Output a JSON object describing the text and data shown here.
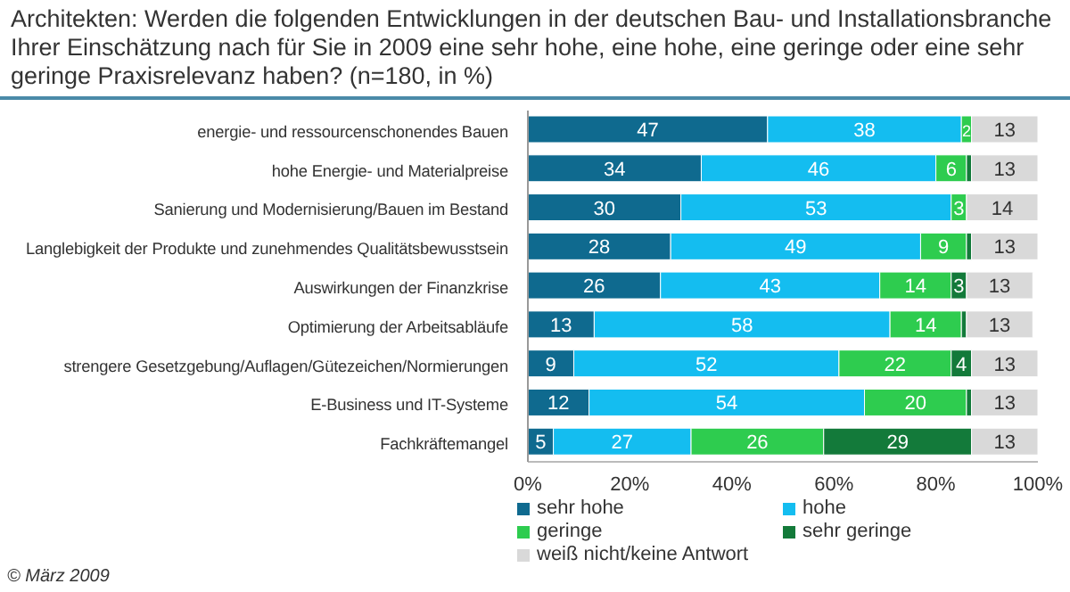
{
  "chart_data": {
    "type": "bar",
    "orientation": "horizontal",
    "stacked": true,
    "title": "Architekten: Werden die folgenden Entwicklungen in der deutschen Bau- und Installationsbranche Ihrer Einschätzung nach für Sie in 2009 eine sehr hohe, eine hohe, eine geringe oder eine sehr geringe Praxisrelevanz haben? (n=180, in %)",
    "categories": [
      "energie- und ressourcenschonendes Bauen",
      "hohe Energie- und Materialpreise",
      "Sanierung und Modernisierung/Bauen im Bestand",
      "Langlebigkeit der Produkte und zunehmendes Qualitätsbewusstsein",
      "Auswirkungen der Finanzkrise",
      "Optimierung der Arbeitsabläufe",
      "strengere Gesetzgebung/Auflagen/Gütezeichen/Normierungen",
      "E-Business und IT-Systeme",
      "Fachkräftemangel"
    ],
    "series": [
      {
        "name": "sehr hohe",
        "color": "#0f6a8f",
        "values": [
          47,
          34,
          30,
          28,
          26,
          13,
          9,
          12,
          5
        ],
        "value_labels": [
          "47",
          "34",
          "30",
          "28",
          "26",
          "13",
          "9",
          "12",
          "5"
        ]
      },
      {
        "name": "hohe",
        "color": "#14bdf0",
        "values": [
          38,
          46,
          53,
          49,
          43,
          58,
          52,
          54,
          27
        ],
        "value_labels": [
          "38",
          "46",
          "53",
          "49",
          "43",
          "58",
          "52",
          "54",
          "27"
        ]
      },
      {
        "name": "geringe",
        "color": "#2ecc4f",
        "values": [
          2,
          6,
          3,
          9,
          14,
          14,
          22,
          20,
          26
        ],
        "value_labels": [
          "2",
          "6",
          "3",
          "9",
          "14",
          "14",
          "22",
          "20",
          "26"
        ]
      },
      {
        "name": "sehr geringe",
        "color": "#137a3a",
        "values": [
          0,
          1,
          0,
          1,
          3,
          1,
          4,
          1,
          29
        ],
        "value_labels": [
          null,
          null,
          null,
          null,
          "3",
          null,
          "4",
          null,
          "29"
        ]
      },
      {
        "name": "weiß nicht/keine Antwort",
        "color": "#d9d9d9",
        "values": [
          13,
          13,
          14,
          13,
          13,
          13,
          13,
          13,
          13
        ],
        "value_labels": [
          "13",
          "13",
          "14",
          "13",
          "13",
          "13",
          "13",
          "13",
          "13"
        ]
      }
    ],
    "xlim": [
      0,
      100
    ],
    "xticks": [
      {
        "value": 0,
        "label": "0%"
      },
      {
        "value": 20,
        "label": "20%"
      },
      {
        "value": 40,
        "label": "40%"
      },
      {
        "value": 60,
        "label": "60%"
      },
      {
        "value": 80,
        "label": "80%"
      },
      {
        "value": 100,
        "label": "100%"
      }
    ],
    "legend": "bottom",
    "grid": false,
    "annotations": [
      "© März 2009"
    ]
  }
}
